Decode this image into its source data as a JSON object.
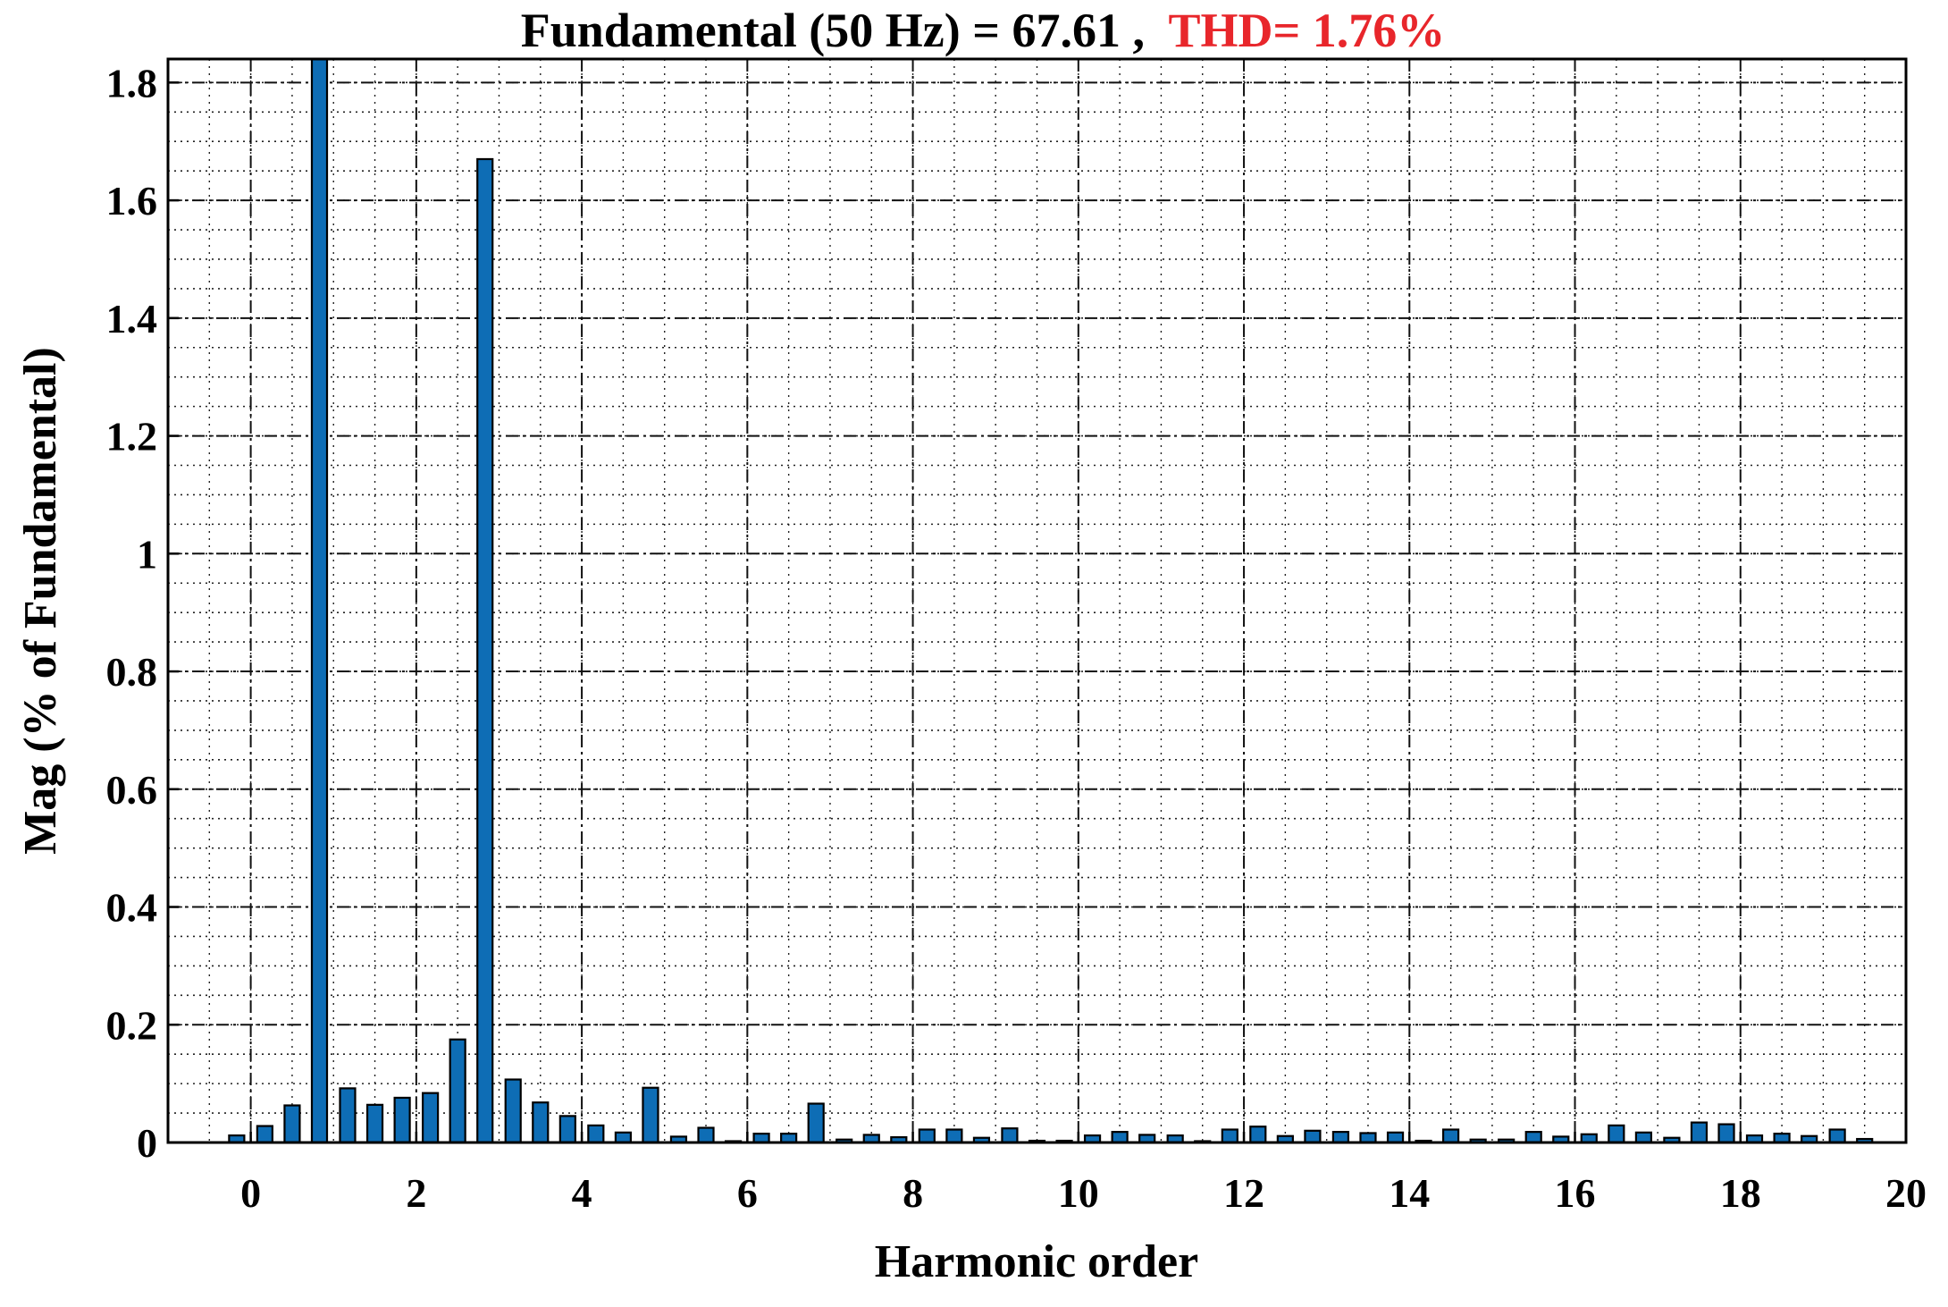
{
  "chart_data": {
    "type": "bar",
    "title_prefix": "Fundamental (50 Hz) = 67.61 ,",
    "title_thd": "THD= 1.76%",
    "xlabel": "Harmonic order",
    "ylabel": "Mag (% of Fundamental)",
    "xlim": [
      -1,
      20
    ],
    "ylim": [
      0,
      1.84
    ],
    "xticks": [
      0,
      2,
      4,
      6,
      8,
      10,
      12,
      14,
      16,
      18,
      20
    ],
    "yticks": [
      0,
      0.2,
      0.4,
      0.6,
      0.8,
      1,
      1.2,
      1.4,
      1.6,
      1.8
    ],
    "ytick_labels": [
      "0",
      "0.2",
      "0.4",
      "0.6",
      "0.8",
      "1",
      "1.2",
      "1.4",
      "1.6",
      "1.8"
    ],
    "grid": true,
    "bar_color": "#0e6db5",
    "thd_color": "#e8262b",
    "x": [
      -0.17,
      0.17,
      0.5,
      0.83,
      1.17,
      1.5,
      1.83,
      2.17,
      2.5,
      2.83,
      3.17,
      3.5,
      3.83,
      4.17,
      4.5,
      4.83,
      5.17,
      5.5,
      5.83,
      6.17,
      6.5,
      6.83,
      7.17,
      7.5,
      7.83,
      8.17,
      8.5,
      8.83,
      9.17,
      9.5,
      9.83,
      10.17,
      10.5,
      10.83,
      11.17,
      11.5,
      11.83,
      12.17,
      12.5,
      12.83,
      13.17,
      13.5,
      13.83,
      14.17,
      14.5,
      14.83,
      15.17,
      15.5,
      15.83,
      16.17,
      16.5,
      16.83,
      17.17,
      17.5,
      17.83,
      18.17,
      18.5,
      18.83,
      19.17,
      19.5
    ],
    "values": [
      0.012,
      0.028,
      0.063,
      1.84,
      0.092,
      0.064,
      0.076,
      0.084,
      0.175,
      1.67,
      0.107,
      0.068,
      0.045,
      0.029,
      0.017,
      0.093,
      0.01,
      0.025,
      0.002,
      0.015,
      0.015,
      0.066,
      0.005,
      0.013,
      0.009,
      0.022,
      0.022,
      0.008,
      0.024,
      0.003,
      0.003,
      0.012,
      0.018,
      0.013,
      0.012,
      0.001,
      0.022,
      0.027,
      0.011,
      0.02,
      0.018,
      0.016,
      0.017,
      0.003,
      0.022,
      0.005,
      0.005,
      0.018,
      0.01,
      0.014,
      0.029,
      0.017,
      0.008,
      0.034,
      0.031,
      0.012,
      0.015,
      0.011,
      0.022,
      0.006
    ]
  }
}
